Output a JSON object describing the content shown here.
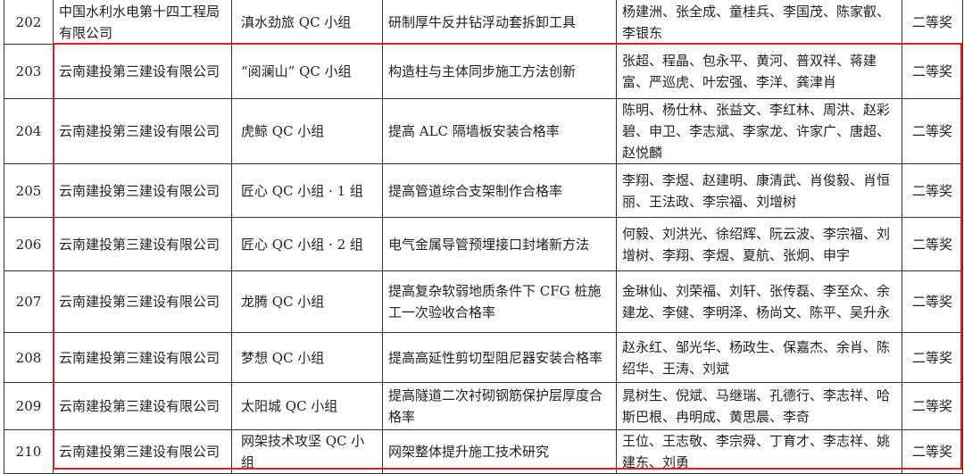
{
  "rows": [
    {
      "no": "202",
      "org": "中国水利水电第十四工程局有限公司",
      "team": "滇水劲旅 QC 小组",
      "topic": "研制厚牛反井钻浮动套拆卸工具",
      "members": "杨建洲、张全成、童桂兵、李国茂、陈家叡、李银东",
      "award": "二等奖"
    },
    {
      "no": "203",
      "org": "云南建投第三建设有限公司",
      "team": "“阅澜山” QC 小组",
      "topic": "构造柱与主体同步施工方法创新",
      "members": "张超、程晶、包永平、黄河、普双祥、蒋建富、严巡虎、叶宏强、李洋、龚津肖",
      "award": "二等奖"
    },
    {
      "no": "204",
      "org": "云南建投第三建设有限公司",
      "team": "虎鲸 QC 小组",
      "topic": "提高 ALC 隔墙板安装合格率",
      "members": "陈明、杨仕林、张益文、李红林、周洪、赵彩碧、申卫、李志斌、李家龙、许家广、唐超、赵悦麟",
      "award": "二等奖"
    },
    {
      "no": "205",
      "org": "云南建投第三建设有限公司",
      "team": "匠心 QC 小组 · 1 组",
      "topic": "提高管道综合支架制作合格率",
      "members": "李翔、李煜、赵建明、康清武、肖俊毅、肖恒丽、王法政、李宗福、刘增树",
      "award": "二等奖"
    },
    {
      "no": "206",
      "org": "云南建投第三建设有限公司",
      "team": "匠心 QC 小组 · 2 组",
      "topic": "电气金属导管预埋接口封堵新方法",
      "members": "何毅、刘洪光、徐绍辉、阮云波、李宗福、刘增树、李翔、李煜、夏航、张炯、申宇",
      "award": "二等奖"
    },
    {
      "no": "207",
      "org": "云南建投第三建设有限公司",
      "team": "龙腾 QC 小组",
      "topic": "提高复杂软弱地质条件下 CFG 桩施工一次验收合格率",
      "members": "金琳仙、刘荣福、刘轩、张传磊、李至众、余建龙、李健、李明泽、杨尚文、陈平、吴升永",
      "award": "二等奖"
    },
    {
      "no": "208",
      "org": "云南建投第三建设有限公司",
      "team": "梦想 QC 小组",
      "topic": "提高高延性剪切型阻尼器安装合格率",
      "members": "赵永红、邹光华、杨政生、保嘉杰、余肖、陈绍华、王涛、刘斌",
      "award": "二等奖"
    },
    {
      "no": "209",
      "org": "云南建投第三建设有限公司",
      "team": "太阳城 QC 小组",
      "topic": "提高隧道二次衬砌钢筋保护层厚度合格率",
      "members": "晁树生、倪斌、马继瑞、孔德行、李志祥、哈斯巴根、冉明成、黄思晨、李奇",
      "award": "二等奖"
    },
    {
      "no": "210",
      "org": "云南建投第三建设有限公司",
      "team": "网架技术攻坚 QC 小组",
      "topic": "网架整体提升施工技术研究",
      "members": "王位、王志敬、李宗舜、丁育才、李志祥、姚建东、刘勇",
      "award": "二等奖"
    }
  ],
  "highlight_color": "#e02020"
}
